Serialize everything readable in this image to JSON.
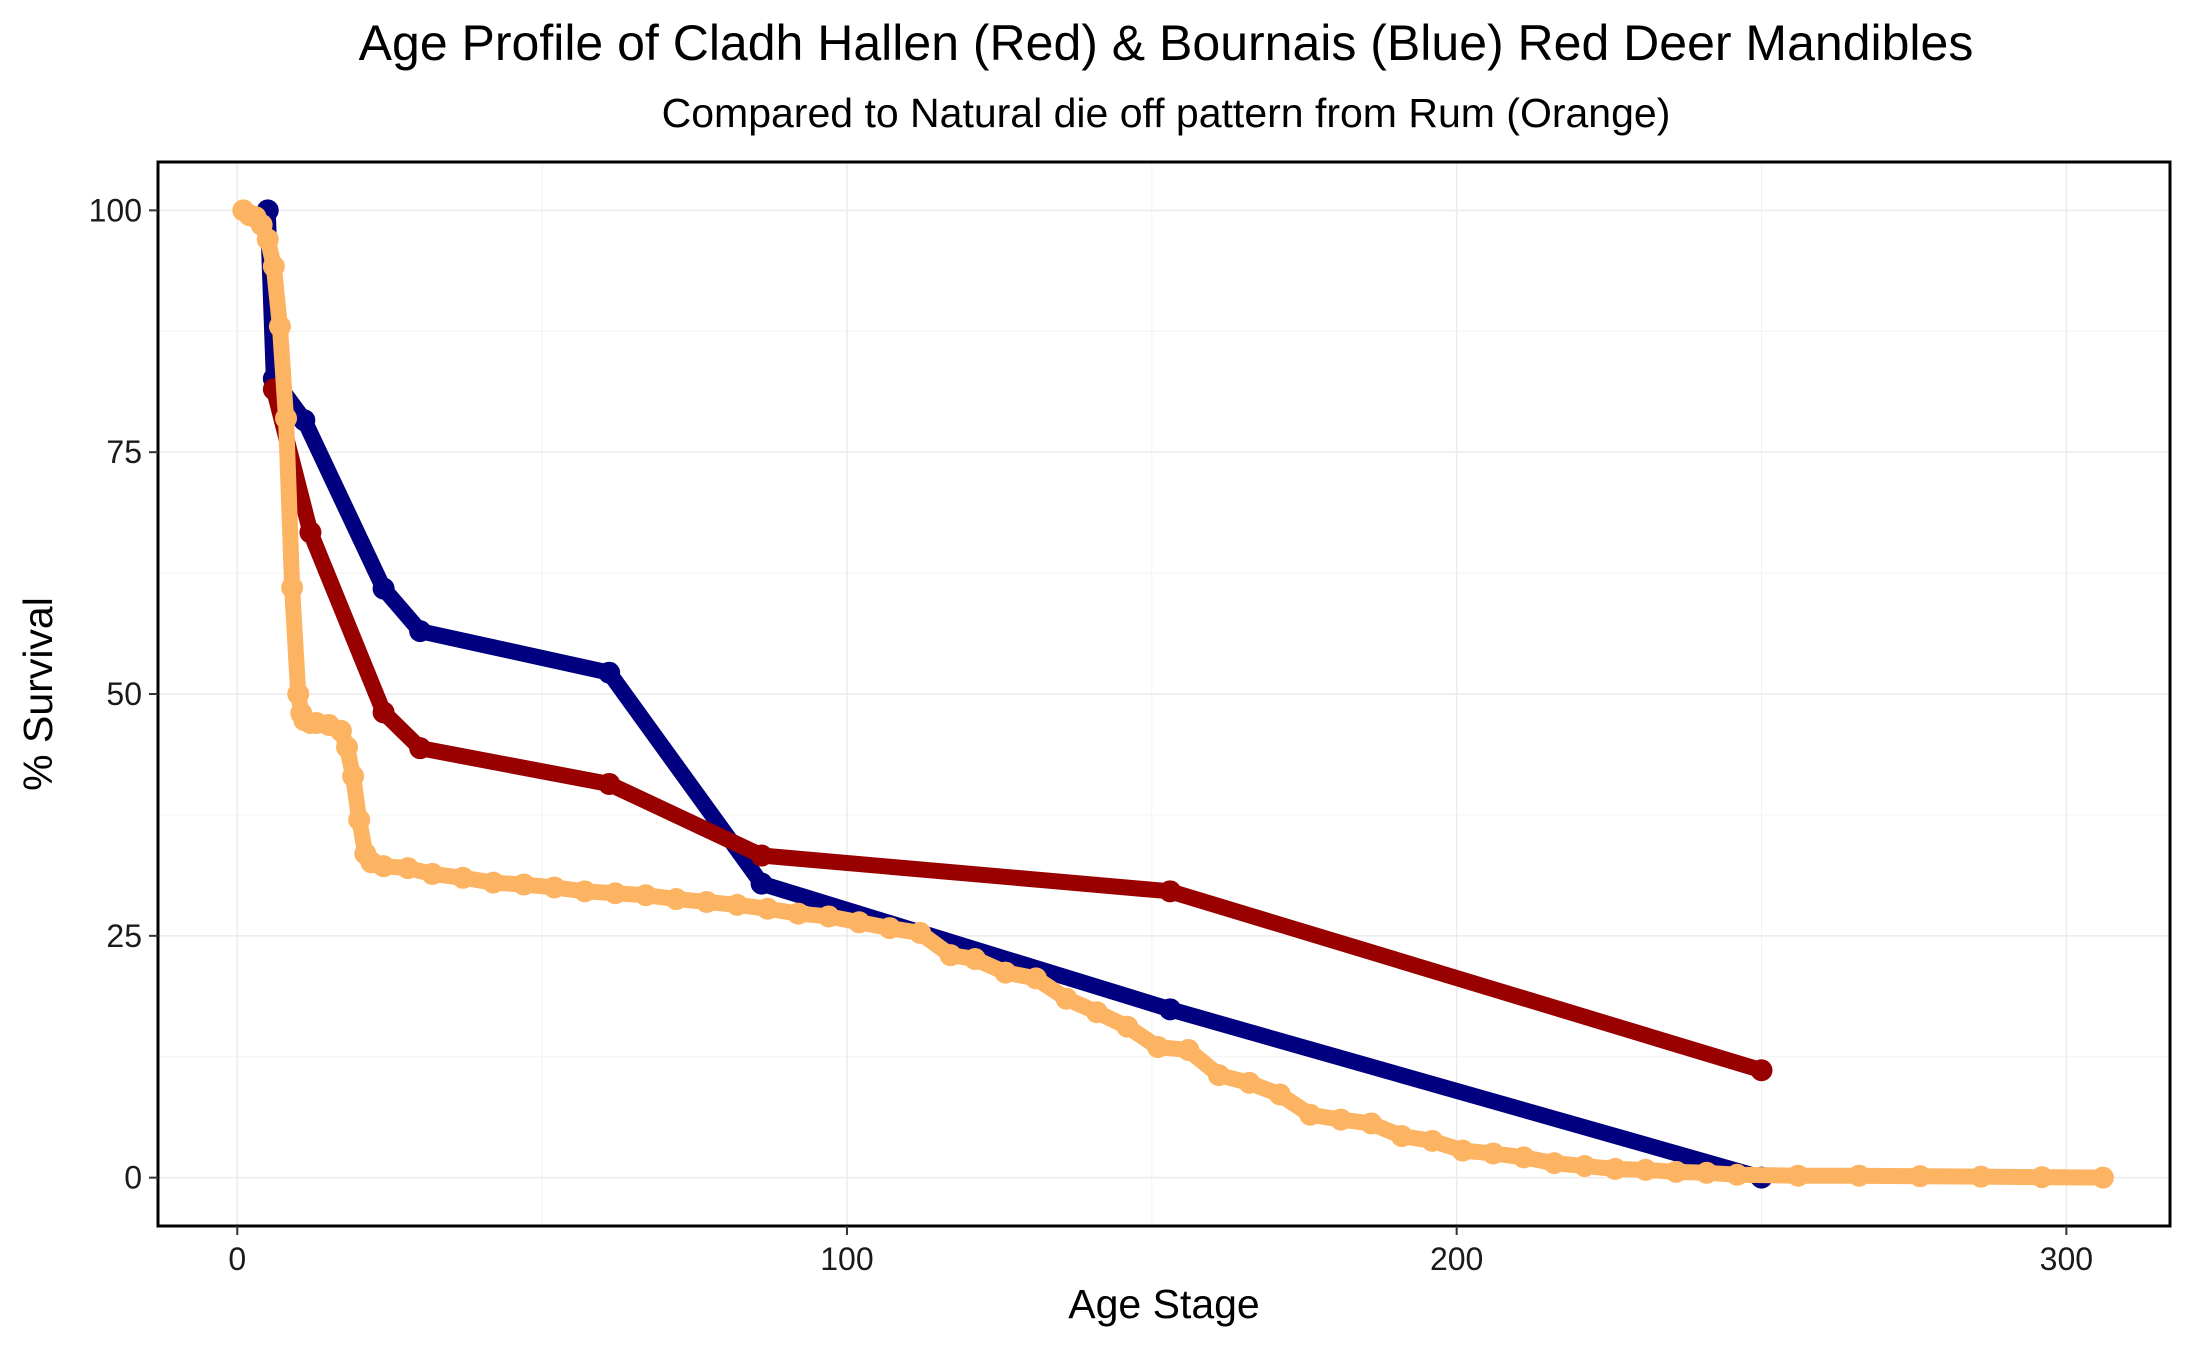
{
  "chart_data": {
    "type": "line",
    "title": "Age Profile of Cladh Hallen (Red) & Bournais (Blue) Red Deer Mandibles",
    "subtitle": "Compared to Natural die off pattern from Rum (Orange)",
    "xlabel": "Age Stage",
    "ylabel": "% Survival",
    "xlim": [
      -13,
      317
    ],
    "ylim": [
      -5,
      105
    ],
    "x_ticks": [
      0,
      100,
      200,
      300
    ],
    "y_ticks": [
      0,
      25,
      50,
      75,
      100
    ],
    "grid": true,
    "legend": "none",
    "series": [
      {
        "color": "#000080",
        "x": [
          5,
          6,
          11,
          24,
          30,
          61,
          86,
          153,
          250
        ],
        "y": [
          100,
          82.6,
          78.3,
          60.9,
          56.5,
          52.2,
          30.4,
          17.4,
          0
        ]
      },
      {
        "color": "#990000",
        "x": [
          6,
          12,
          24,
          30,
          61,
          86,
          153,
          250
        ],
        "y": [
          81.5,
          66.7,
          48.1,
          44.4,
          40.7,
          33.3,
          29.6,
          11.1
        ]
      },
      {
        "color": "#FDB462",
        "x": [
          1,
          2,
          3,
          4,
          5,
          6,
          7,
          8,
          9,
          10,
          10.5,
          11,
          12,
          13,
          15,
          17,
          18,
          19,
          20,
          21,
          22,
          24,
          28,
          32,
          37,
          42,
          47,
          52,
          57,
          62,
          67,
          72,
          77,
          82,
          87,
          92,
          97,
          102,
          107,
          112,
          117,
          121,
          126,
          131,
          136,
          141,
          146,
          151,
          156,
          161,
          166,
          171,
          176,
          181,
          186,
          191,
          196,
          201,
          206,
          211,
          216,
          221,
          226,
          231,
          236,
          241,
          246,
          256,
          266,
          276,
          286,
          296,
          306
        ],
        "y": [
          100,
          99.5,
          99.3,
          98.5,
          97,
          94.2,
          88,
          78.5,
          61,
          50,
          48,
          47.3,
          47,
          47,
          46.8,
          46.2,
          44.5,
          41.5,
          37,
          33.5,
          32.6,
          32.2,
          32,
          31.4,
          31,
          30.5,
          30.3,
          30,
          29.6,
          29.4,
          29.2,
          28.8,
          28.5,
          28.2,
          27.8,
          27.3,
          27,
          26.4,
          25.8,
          25.3,
          23,
          22.6,
          21.2,
          20.6,
          18.5,
          17.1,
          15.6,
          13.5,
          13.2,
          10.6,
          9.8,
          8.6,
          6.5,
          6,
          5.6,
          4.3,
          3.8,
          2.8,
          2.5,
          2.1,
          1.5,
          1.2,
          0.9,
          0.8,
          0.6,
          0.5,
          0.3,
          0.2,
          0.2,
          0.15,
          0.1,
          0.05,
          0
        ]
      }
    ]
  }
}
